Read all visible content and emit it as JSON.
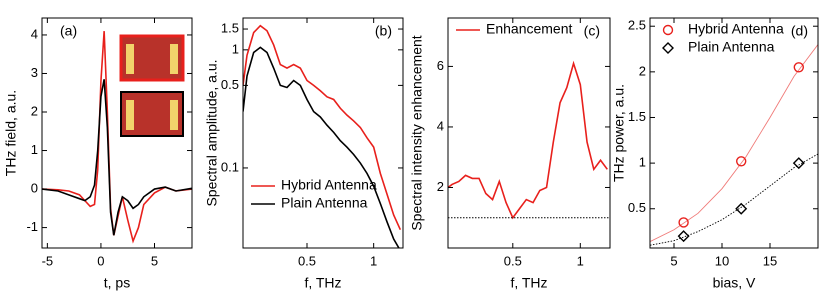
{
  "chart_data": [
    {
      "type": "line",
      "panel_label": "(a)",
      "x_label": "t, ps",
      "y_label": "THz field, a.u.",
      "xlim": [
        -5.5,
        8.5
      ],
      "xticks": [
        -5,
        0,
        5
      ],
      "ylim": [
        -1.53,
        4.44
      ],
      "yticks": [
        -1,
        0,
        1,
        2,
        3,
        4
      ],
      "ylog": false,
      "x": [
        -5.5,
        -4,
        -3,
        -2,
        -1.5,
        -1,
        -0.6,
        -0.3,
        0,
        0.3,
        0.6,
        0.9,
        1.2,
        1.6,
        2,
        2.5,
        3,
        3.5,
        4,
        5,
        6,
        7,
        8.5
      ],
      "series": [
        {
          "color": "#e8201c",
          "values": [
            0,
            -0.02,
            -0.05,
            -0.15,
            -0.3,
            -0.45,
            -0.4,
            0.5,
            2.8,
            4.1,
            2.0,
            -0.5,
            -1.2,
            -0.7,
            -0.2,
            -0.8,
            -1.35,
            -1.0,
            -0.4,
            -0.1,
            0.05,
            -0.05,
            0
          ]
        },
        {
          "color": "#000000",
          "values": [
            0,
            -0.05,
            -0.15,
            -0.25,
            -0.3,
            -0.2,
            0.1,
            1.0,
            2.4,
            2.85,
            1.6,
            -0.6,
            -1.2,
            -0.6,
            -0.2,
            -0.3,
            -0.5,
            -0.4,
            -0.2,
            0,
            0.05,
            -0.05,
            0.02
          ]
        }
      ]
    },
    {
      "type": "line",
      "panel_label": "(b)",
      "x_label": "f, THz",
      "y_label": "Spectral amplitude, a.u.",
      "xlim": [
        0.02,
        1.22
      ],
      "xticks": [
        0.5,
        1
      ],
      "ylim": [
        0.021,
        1.86
      ],
      "yticks": [
        0.1,
        0.5,
        1,
        1.5
      ],
      "ylog": true,
      "legend": "lower left",
      "x": [
        0.02,
        0.05,
        0.1,
        0.15,
        0.2,
        0.25,
        0.3,
        0.35,
        0.4,
        0.45,
        0.5,
        0.55,
        0.6,
        0.65,
        0.7,
        0.75,
        0.8,
        0.85,
        0.9,
        0.95,
        1.0,
        1.05,
        1.1,
        1.15,
        1.2
      ],
      "series": [
        {
          "name": "Hybrid Antenna",
          "color": "#e8201c",
          "values": [
            0.5,
            0.9,
            1.4,
            1.6,
            1.45,
            1.1,
            0.75,
            0.7,
            0.75,
            0.7,
            0.55,
            0.5,
            0.45,
            0.4,
            0.38,
            0.32,
            0.28,
            0.25,
            0.22,
            0.18,
            0.15,
            0.09,
            0.06,
            0.04,
            0.03
          ]
        },
        {
          "name": "Plain Antenna",
          "color": "#000000",
          "values": [
            0.3,
            0.6,
            0.95,
            1.05,
            0.95,
            0.7,
            0.5,
            0.48,
            0.55,
            0.5,
            0.38,
            0.3,
            0.27,
            0.23,
            0.2,
            0.17,
            0.15,
            0.13,
            0.11,
            0.09,
            0.07,
            0.05,
            0.035,
            0.025,
            0.02
          ]
        }
      ]
    },
    {
      "type": "line",
      "panel_label": "(c)",
      "x_label": "f, THz",
      "y_label": "Spectral intensity enhancement",
      "xlim": [
        0.02,
        1.22
      ],
      "xticks": [
        0.5,
        1
      ],
      "ylim": [
        0,
        7.6
      ],
      "yticks": [
        2,
        4,
        6
      ],
      "ylog": false,
      "legend": "upper left",
      "hline": 1,
      "x": [
        0.02,
        0.05,
        0.1,
        0.15,
        0.2,
        0.25,
        0.3,
        0.35,
        0.4,
        0.45,
        0.5,
        0.55,
        0.6,
        0.65,
        0.7,
        0.75,
        0.8,
        0.85,
        0.9,
        0.95,
        1.0,
        1.05,
        1.1,
        1.15,
        1.2
      ],
      "series": [
        {
          "name": "Enhancement",
          "color": "#e8201c",
          "values": [
            2.0,
            2.1,
            2.2,
            2.4,
            2.3,
            2.3,
            1.8,
            1.6,
            2.2,
            1.5,
            1.0,
            1.3,
            1.6,
            1.5,
            1.9,
            2.0,
            3.5,
            4.8,
            5.3,
            6.1,
            5.4,
            3.5,
            2.6,
            2.9,
            2.6
          ]
        }
      ]
    },
    {
      "type": "scatter",
      "panel_label": "(d)",
      "x_label": "bias, V",
      "y_label": "THz power, a.u.",
      "xlim": [
        2.5,
        20
      ],
      "xticks": [
        5,
        10,
        15
      ],
      "ylim": [
        0.07,
        2.59
      ],
      "yticks": [
        0.5,
        1,
        1.5,
        2,
        2.5
      ],
      "ylog": false,
      "legend": "upper left",
      "series": [
        {
          "name": "Hybrid Antenna",
          "color": "#e8201c",
          "marker": "circle",
          "x": [
            6,
            12,
            18
          ],
          "values": [
            0.35,
            1.02,
            2.05
          ]
        },
        {
          "name": "Plain Antenna",
          "color": "#000000",
          "marker": "diamond",
          "x": [
            6,
            12,
            18
          ],
          "values": [
            0.2,
            0.5,
            1.0
          ]
        },
        {
          "color": "#f07a78",
          "marker": "line",
          "x": [
            2.5,
            5,
            7.5,
            10,
            12.5,
            15,
            17.5,
            20
          ],
          "values": [
            0.14,
            0.27,
            0.45,
            0.72,
            1.07,
            1.5,
            1.95,
            2.3
          ]
        },
        {
          "color": "#000000",
          "marker": "dotted",
          "x": [
            2.5,
            5,
            7.5,
            10,
            12.5,
            15,
            17.5,
            20
          ],
          "values": [
            0.1,
            0.15,
            0.25,
            0.38,
            0.55,
            0.75,
            0.95,
            1.1
          ]
        }
      ]
    }
  ]
}
